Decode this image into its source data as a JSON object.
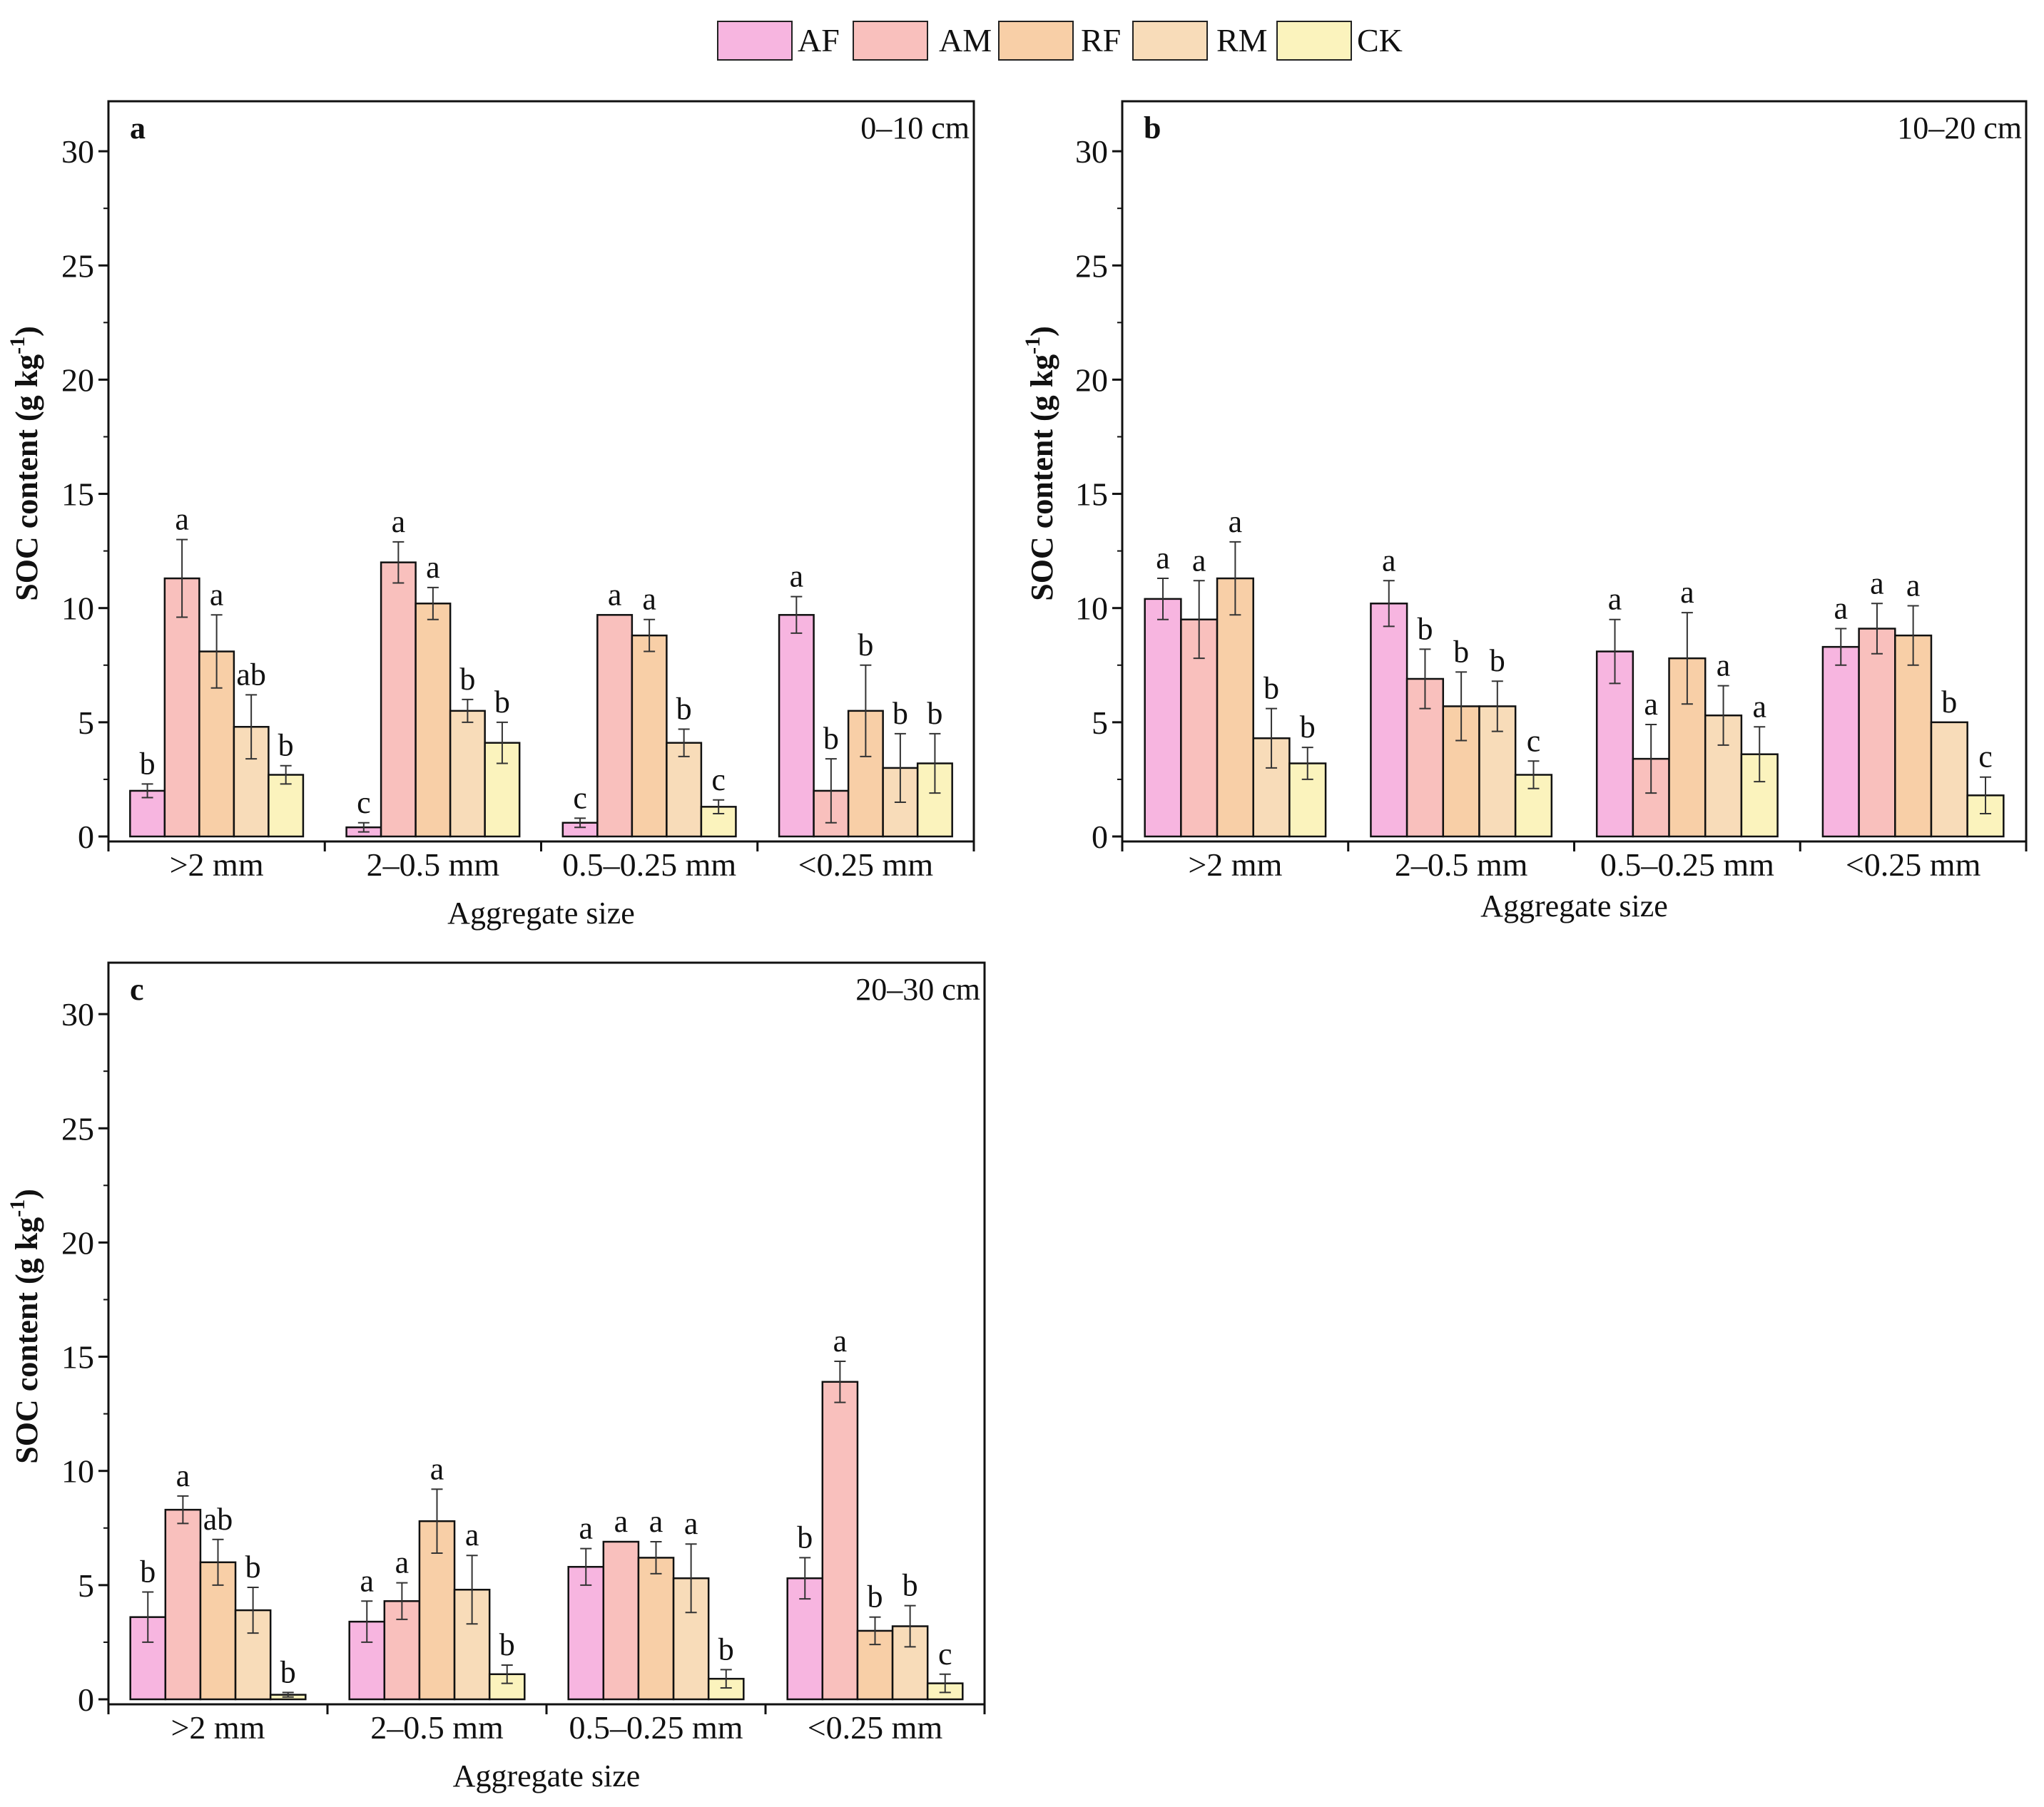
{
  "legend": {
    "items": [
      {
        "label": "AF",
        "color": "#f7b5e0"
      },
      {
        "label": "AM",
        "color": "#f9c0bd"
      },
      {
        "label": "RF",
        "color": "#f8cfa7"
      },
      {
        "label": "RM",
        "color": "#f8dcb9"
      },
      {
        "label": "CK",
        "color": "#fbf3bd"
      }
    ]
  },
  "chart_data": [
    {
      "type": "bar",
      "panel": "a",
      "depth": "0–10 cm",
      "xlabel": "Aggregate size",
      "ylabel": "SOC content (g kg",
      "ylabel_sup": "-1",
      "ylabel_end": ")",
      "ylim": [
        0,
        32
      ],
      "yticks": [
        "0",
        "5",
        "10",
        "15",
        "20",
        "25",
        "30"
      ],
      "categories": [
        ">2 mm",
        "2–0.5 mm",
        "0.5–0.25 mm",
        "<0.25 mm"
      ],
      "series": [
        {
          "name": "AF",
          "values": [
            2.0,
            0.4,
            0.6,
            9.7
          ],
          "errors": [
            0.3,
            0.2,
            0.2,
            0.8
          ],
          "letters": [
            "b",
            "c",
            "c",
            "a"
          ]
        },
        {
          "name": "AM",
          "values": [
            11.3,
            12.0,
            9.7,
            2.0
          ],
          "errors": [
            1.7,
            0.9,
            0.0,
            1.4
          ],
          "letters": [
            "a",
            "a",
            "a",
            "b"
          ]
        },
        {
          "name": "RF",
          "values": [
            8.1,
            10.2,
            8.8,
            5.5
          ],
          "errors": [
            1.6,
            0.7,
            0.7,
            2.0
          ],
          "letters": [
            "a",
            "a",
            "a",
            "b"
          ]
        },
        {
          "name": "RM",
          "values": [
            4.8,
            5.5,
            4.1,
            3.0
          ],
          "errors": [
            1.4,
            0.5,
            0.6,
            1.5
          ],
          "letters": [
            "ab",
            "b",
            "b",
            "b"
          ]
        },
        {
          "name": "CK",
          "values": [
            2.7,
            4.1,
            1.3,
            3.2
          ],
          "errors": [
            0.4,
            0.9,
            0.3,
            1.3
          ],
          "letters": [
            "b",
            "b",
            "c",
            "b"
          ]
        }
      ]
    },
    {
      "type": "bar",
      "panel": "b",
      "depth": "10–20 cm",
      "xlabel": "Aggregate size",
      "ylabel": "SOC content (g kg",
      "ylabel_sup": "-1",
      "ylabel_end": ")",
      "ylim": [
        0,
        32
      ],
      "yticks": [
        "0",
        "5",
        "10",
        "15",
        "20",
        "25",
        "30"
      ],
      "categories": [
        ">2 mm",
        "2–0.5 mm",
        "0.5–0.25 mm",
        "<0.25 mm"
      ],
      "series": [
        {
          "name": "AF",
          "values": [
            10.4,
            10.2,
            8.1,
            8.3
          ],
          "errors": [
            0.9,
            1.0,
            1.4,
            0.8
          ],
          "letters": [
            "a",
            "a",
            "a",
            "a"
          ]
        },
        {
          "name": "AM",
          "values": [
            9.5,
            6.9,
            3.4,
            9.1
          ],
          "errors": [
            1.7,
            1.3,
            1.5,
            1.1
          ],
          "letters": [
            "a",
            "b",
            "a",
            "a"
          ]
        },
        {
          "name": "RF",
          "values": [
            11.3,
            5.7,
            7.8,
            8.8
          ],
          "errors": [
            1.6,
            1.5,
            2.0,
            1.3
          ],
          "letters": [
            "a",
            "b",
            "a",
            "a"
          ]
        },
        {
          "name": "RM",
          "values": [
            4.3,
            5.7,
            5.3,
            5.0
          ],
          "errors": [
            1.3,
            1.1,
            1.3,
            0.0
          ],
          "letters": [
            "b",
            "b",
            "a",
            "b"
          ]
        },
        {
          "name": "CK",
          "values": [
            3.2,
            2.7,
            3.6,
            1.8
          ],
          "errors": [
            0.7,
            0.6,
            1.2,
            0.8
          ],
          "letters": [
            "b",
            "c",
            "a",
            "c"
          ]
        }
      ]
    },
    {
      "type": "bar",
      "panel": "c",
      "depth": "20–30 cm",
      "xlabel": "Aggregate size",
      "ylabel": "SOC content (g kg",
      "ylabel_sup": "-1",
      "ylabel_end": ")",
      "ylim": [
        0,
        32
      ],
      "yticks": [
        "0",
        "5",
        "10",
        "15",
        "20",
        "25",
        "30"
      ],
      "categories": [
        ">2 mm",
        "2–0.5 mm",
        "0.5–0.25 mm",
        "<0.25 mm"
      ],
      "series": [
        {
          "name": "AF",
          "values": [
            3.6,
            3.4,
            5.8,
            5.3
          ],
          "errors": [
            1.1,
            0.9,
            0.8,
            0.9
          ],
          "letters": [
            "b",
            "a",
            "a",
            "b"
          ]
        },
        {
          "name": "AM",
          "values": [
            8.3,
            4.3,
            6.9,
            13.9
          ],
          "errors": [
            0.6,
            0.8,
            0.0,
            0.9
          ],
          "letters": [
            "a",
            "a",
            "a",
            "a"
          ]
        },
        {
          "name": "RF",
          "values": [
            6.0,
            7.8,
            6.2,
            3.0
          ],
          "errors": [
            1.0,
            1.4,
            0.7,
            0.6
          ],
          "letters": [
            "ab",
            "a",
            "a",
            "b"
          ]
        },
        {
          "name": "RM",
          "values": [
            3.9,
            4.8,
            5.3,
            3.2
          ],
          "errors": [
            1.0,
            1.5,
            1.5,
            0.9
          ],
          "letters": [
            "b",
            "a",
            "a",
            "b"
          ]
        },
        {
          "name": "CK",
          "values": [
            0.2,
            1.1,
            0.9,
            0.7
          ],
          "errors": [
            0.1,
            0.4,
            0.4,
            0.4
          ],
          "letters": [
            "b",
            "b",
            "b",
            "c"
          ]
        }
      ]
    }
  ]
}
